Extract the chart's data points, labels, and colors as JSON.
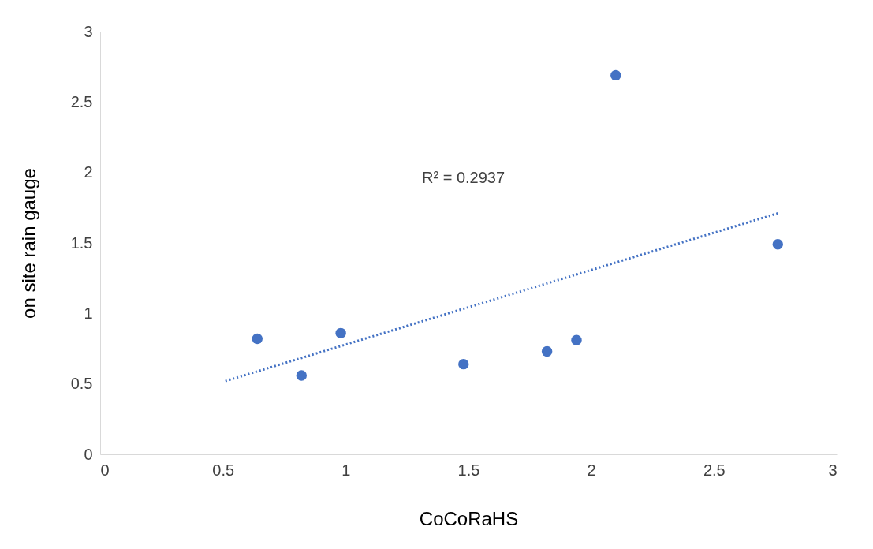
{
  "chart_data": {
    "type": "scatter",
    "xlabel": "CoCoRaHS",
    "ylabel": "on site rain gauge",
    "xlim": [
      0,
      3
    ],
    "xticks": [
      0,
      0.5,
      1,
      1.5,
      2,
      2.5,
      3
    ],
    "ylim": [
      0,
      3
    ],
    "yticks": [
      0,
      0.5,
      1,
      1.5,
      2,
      2.5,
      3
    ],
    "grid": false,
    "legend": false,
    "marker": "circle",
    "annotations": [
      "R² = 0.2937"
    ],
    "series": [
      {
        "color": "#4472c4",
        "x": [
          0.64,
          0.82,
          0.98,
          1.48,
          1.82,
          1.94,
          2.1,
          2.76
        ],
        "values": [
          0.82,
          0.56,
          0.86,
          0.64,
          0.73,
          0.81,
          2.69,
          1.49
        ]
      },
      {
        "type": "line",
        "color": "#4472c4",
        "line_style": "dotted",
        "marker": "none",
        "x": [
          0.51,
          2.76
        ],
        "values": [
          0.52,
          1.71
        ]
      }
    ]
  }
}
